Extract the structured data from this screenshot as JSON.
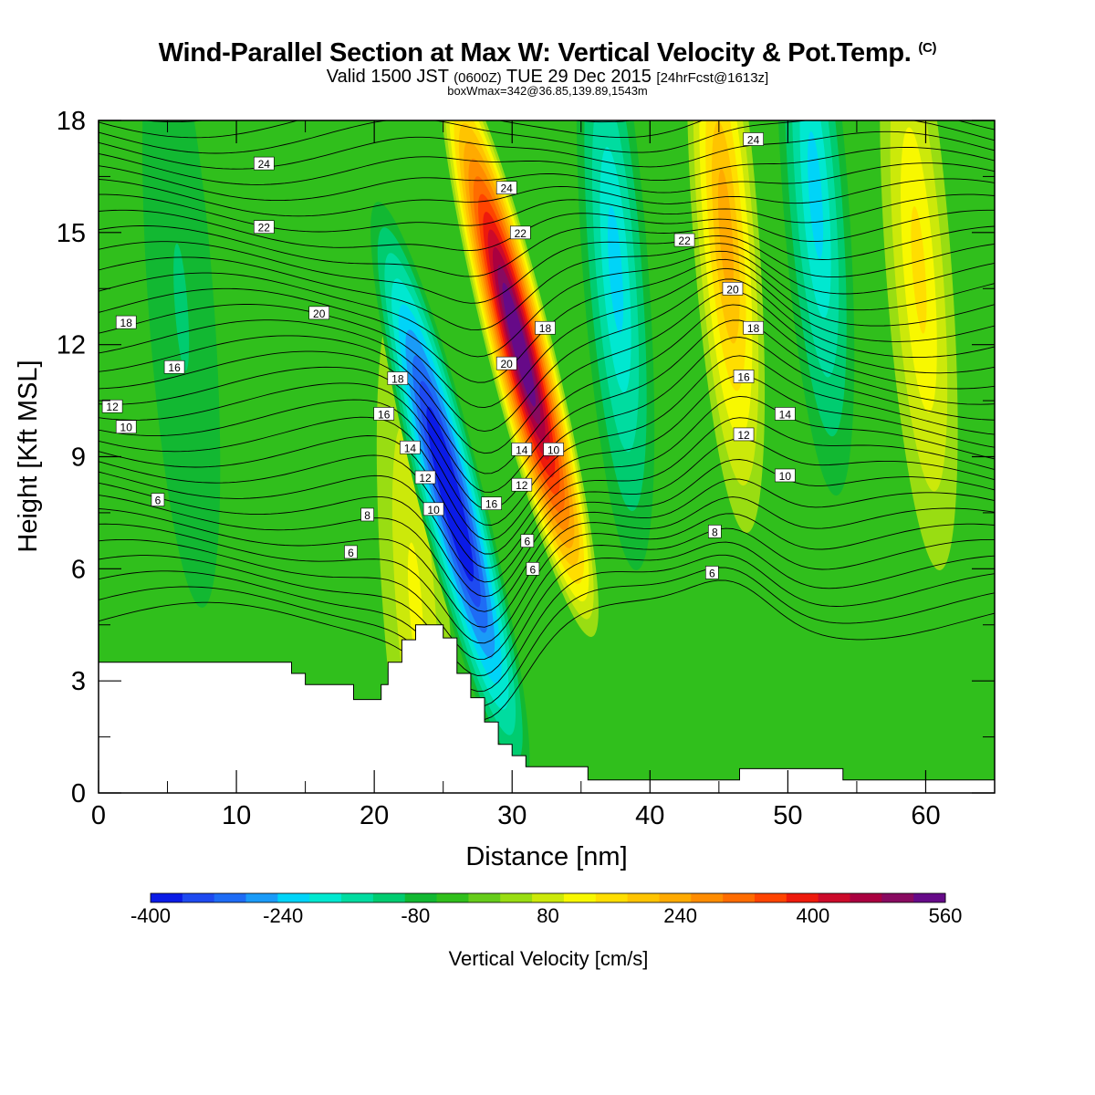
{
  "header": {
    "title": "Wind-Parallel Section at Max W: Vertical Velocity & Pot.Temp.",
    "copyright": "(C)",
    "valid_prefix": "Valid 1500 JST",
    "valid_utc": "(0600Z)",
    "valid_date": "TUE 29 Dec 2015",
    "forecast": "[24hrFcst@1613z]",
    "box_info": "boxWmax=342@36.85,139.89,1543m"
  },
  "chart_data": {
    "type": "contour",
    "xlabel": "Distance [nm]",
    "ylabel": "Height [Kft MSL]",
    "xlim": [
      0,
      65
    ],
    "ylim": [
      0,
      18
    ],
    "xticks": [
      0,
      10,
      20,
      30,
      40,
      50,
      60
    ],
    "yticks": [
      0,
      3,
      6,
      9,
      12,
      15,
      18
    ],
    "colorbar": {
      "label": "Vertical Velocity [cm/s]",
      "min": -400,
      "max": 560,
      "step": 40,
      "tick_labels": [
        "-400",
        "-240",
        "-80",
        "80",
        "240",
        "400",
        "560"
      ],
      "colors": [
        "#0a1be6",
        "#1e4af0",
        "#1e6cf5",
        "#1a9bf8",
        "#00d4f8",
        "#00e8d0",
        "#00dca0",
        "#00cc70",
        "#12b832",
        "#30bf1c",
        "#66cc1a",
        "#99dd12",
        "#cce90a",
        "#f8f800",
        "#ffde00",
        "#ffc400",
        "#ffaa00",
        "#ff8c00",
        "#ff6c00",
        "#ff4400",
        "#ee1a0c",
        "#cc0a2a",
        "#aa0040",
        "#880a60",
        "#660a88"
      ]
    },
    "terrain_kft": [
      [
        0,
        3.5
      ],
      [
        14,
        3.5
      ],
      [
        14,
        3.2
      ],
      [
        15,
        3.2
      ],
      [
        15,
        2.9
      ],
      [
        18.5,
        2.9
      ],
      [
        18.5,
        2.5
      ],
      [
        20.5,
        2.5
      ],
      [
        20.5,
        2.9
      ],
      [
        21,
        2.9
      ],
      [
        21,
        3.5
      ],
      [
        22,
        3.5
      ],
      [
        22,
        4.1
      ],
      [
        23,
        4.1
      ],
      [
        23,
        4.5
      ],
      [
        25,
        4.5
      ],
      [
        25,
        4.15
      ],
      [
        26,
        4.15
      ],
      [
        26,
        3.2
      ],
      [
        27,
        3.2
      ],
      [
        27,
        2.55
      ],
      [
        28,
        2.55
      ],
      [
        28,
        1.9
      ],
      [
        29,
        1.9
      ],
      [
        29,
        1.3
      ],
      [
        30,
        1.3
      ],
      [
        30,
        1.0
      ],
      [
        31,
        1.0
      ],
      [
        31,
        0.7
      ],
      [
        35.5,
        0.7
      ],
      [
        35.5,
        0.35
      ],
      [
        46.5,
        0.35
      ],
      [
        46.5,
        0.65
      ],
      [
        54,
        0.65
      ],
      [
        54,
        0.35
      ],
      [
        65,
        0.35
      ]
    ],
    "updraft_cores": [
      {
        "x": 30.5,
        "z": 12,
        "w": 560
      },
      {
        "x": 45.5,
        "z": 15,
        "w": 240
      },
      {
        "x": 59.5,
        "z": 14,
        "w": 160
      },
      {
        "x": 23,
        "z": 5,
        "w": 120
      }
    ],
    "downdraft_cores": [
      {
        "x": 25.5,
        "z": 8,
        "w": -400
      },
      {
        "x": 37.5,
        "z": 14,
        "w": -200
      },
      {
        "x": 52,
        "z": 16,
        "w": -200
      },
      {
        "x": 6,
        "z": 13,
        "w": -80
      }
    ],
    "theta_labels": [
      {
        "text": "24",
        "x": 12,
        "z": 16.85
      },
      {
        "text": "22",
        "x": 12,
        "z": 15.15
      },
      {
        "text": "20",
        "x": 16,
        "z": 12.85
      },
      {
        "text": "18",
        "x": 2,
        "z": 12.6
      },
      {
        "text": "16",
        "x": 5.5,
        "z": 11.4
      },
      {
        "text": "12",
        "x": 1,
        "z": 10.35
      },
      {
        "text": "10",
        "x": 2,
        "z": 9.8
      },
      {
        "text": "6",
        "x": 4.3,
        "z": 7.85
      },
      {
        "text": "18",
        "x": 21.7,
        "z": 11.1
      },
      {
        "text": "16",
        "x": 20.7,
        "z": 10.15
      },
      {
        "text": "14",
        "x": 22.6,
        "z": 9.25
      },
      {
        "text": "12",
        "x": 23.7,
        "z": 8.45
      },
      {
        "text": "10",
        "x": 24.3,
        "z": 7.6
      },
      {
        "text": "8",
        "x": 19.5,
        "z": 7.45
      },
      {
        "text": "6",
        "x": 18.3,
        "z": 6.45
      },
      {
        "text": "24",
        "x": 29.6,
        "z": 16.2
      },
      {
        "text": "22",
        "x": 30.6,
        "z": 15.0
      },
      {
        "text": "18",
        "x": 32.4,
        "z": 12.45
      },
      {
        "text": "20",
        "x": 29.6,
        "z": 11.5
      },
      {
        "text": "16",
        "x": 28.5,
        "z": 7.75
      },
      {
        "text": "14",
        "x": 30.7,
        "z": 9.2
      },
      {
        "text": "12",
        "x": 30.7,
        "z": 8.25
      },
      {
        "text": "10",
        "x": 33,
        "z": 9.2
      },
      {
        "text": "6",
        "x": 31.1,
        "z": 6.75
      },
      {
        "text": "6",
        "x": 31.5,
        "z": 6.0
      },
      {
        "text": "24",
        "x": 47.5,
        "z": 17.5
      },
      {
        "text": "22",
        "x": 42.5,
        "z": 14.8
      },
      {
        "text": "20",
        "x": 46,
        "z": 13.5
      },
      {
        "text": "18",
        "x": 47.5,
        "z": 12.45
      },
      {
        "text": "16",
        "x": 46.8,
        "z": 11.15
      },
      {
        "text": "14",
        "x": 49.8,
        "z": 10.15
      },
      {
        "text": "12",
        "x": 46.8,
        "z": 9.6
      },
      {
        "text": "10",
        "x": 49.8,
        "z": 8.5
      },
      {
        "text": "8",
        "x": 44.7,
        "z": 7.0
      },
      {
        "text": "6",
        "x": 44.5,
        "z": 5.9
      }
    ]
  }
}
